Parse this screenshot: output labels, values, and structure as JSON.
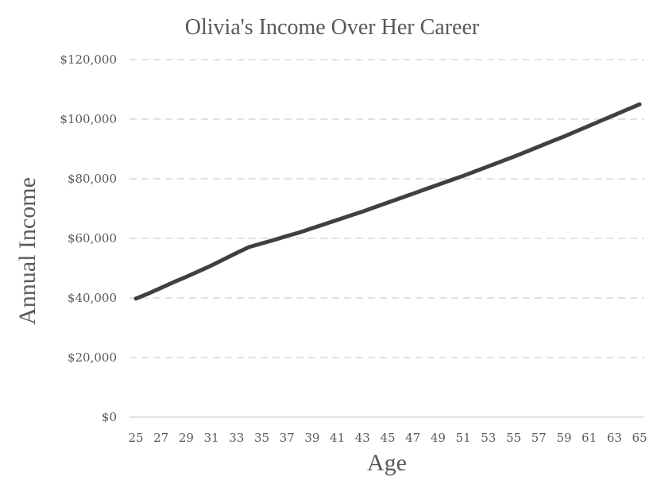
{
  "chart_data": {
    "type": "line",
    "title": "Olivia's Income Over Her Career",
    "xlabel": "Age",
    "ylabel": "Annual Income",
    "x_tick_labels": [
      "25",
      "27",
      "29",
      "31",
      "33",
      "35",
      "37",
      "39",
      "41",
      "43",
      "45",
      "47",
      "49",
      "51",
      "53",
      "55",
      "57",
      "59",
      "61",
      "63",
      "65"
    ],
    "y_tick_labels": [
      "$0",
      "$20,000",
      "$40,000",
      "$60,000",
      "$80,000",
      "$100,000",
      "$120,000"
    ],
    "ylim": [
      0,
      120000
    ],
    "xlim": [
      25,
      65
    ],
    "grid": true,
    "legend": "none",
    "series": [
      {
        "color": "#404040",
        "x": [
          25,
          26,
          27,
          28,
          29,
          30,
          31,
          32,
          33,
          34,
          35,
          36,
          37,
          38,
          39,
          40,
          41,
          42,
          43,
          44,
          45,
          46,
          47,
          48,
          49,
          50,
          51,
          52,
          53,
          54,
          55,
          56,
          57,
          58,
          59,
          60,
          61,
          62,
          63,
          64,
          65
        ],
        "values": [
          39800,
          41500,
          43400,
          45300,
          47100,
          49000,
          50900,
          53000,
          55100,
          57100,
          58300,
          59500,
          60800,
          62000,
          63400,
          64800,
          66200,
          67600,
          69000,
          70500,
          72000,
          73500,
          75000,
          76500,
          78000,
          79500,
          81000,
          82600,
          84200,
          85800,
          87400,
          89100,
          90800,
          92500,
          94200,
          96000,
          97800,
          99600,
          101400,
          103200,
          105000
        ]
      }
    ]
  }
}
